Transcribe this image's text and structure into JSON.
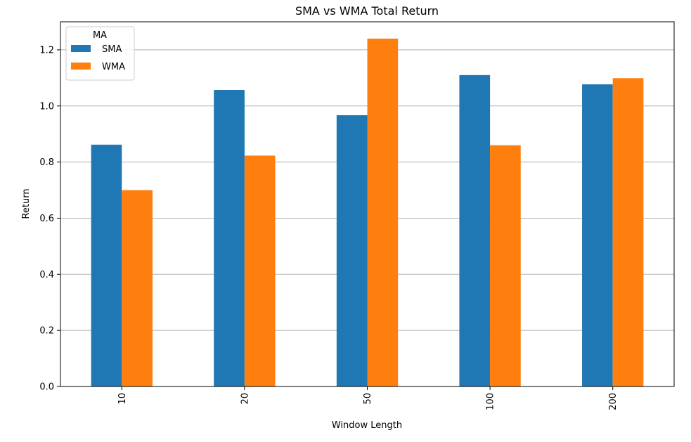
{
  "chart_data": {
    "type": "bar",
    "title": "SMA vs WMA Total Return",
    "xlabel": "Window Length",
    "ylabel": "Return",
    "categories": [
      "10",
      "20",
      "50",
      "100",
      "200"
    ],
    "series": [
      {
        "name": "SMA",
        "color": "#1f77b4",
        "values": [
          0.862,
          1.057,
          0.967,
          1.11,
          1.077
        ]
      },
      {
        "name": "WMA",
        "color": "#ff7f0e",
        "values": [
          0.7,
          0.823,
          1.24,
          0.86,
          1.099
        ]
      }
    ],
    "ylim": [
      0,
      1.3
    ],
    "yticks": [
      0.0,
      0.2,
      0.4,
      0.6,
      0.8,
      1.0,
      1.2
    ],
    "ytick_labels": [
      "0.0",
      "0.2",
      "0.4",
      "0.6",
      "0.8",
      "1.0",
      "1.2"
    ],
    "grid": "y",
    "legend": {
      "title": "MA",
      "position": "top-left"
    }
  }
}
